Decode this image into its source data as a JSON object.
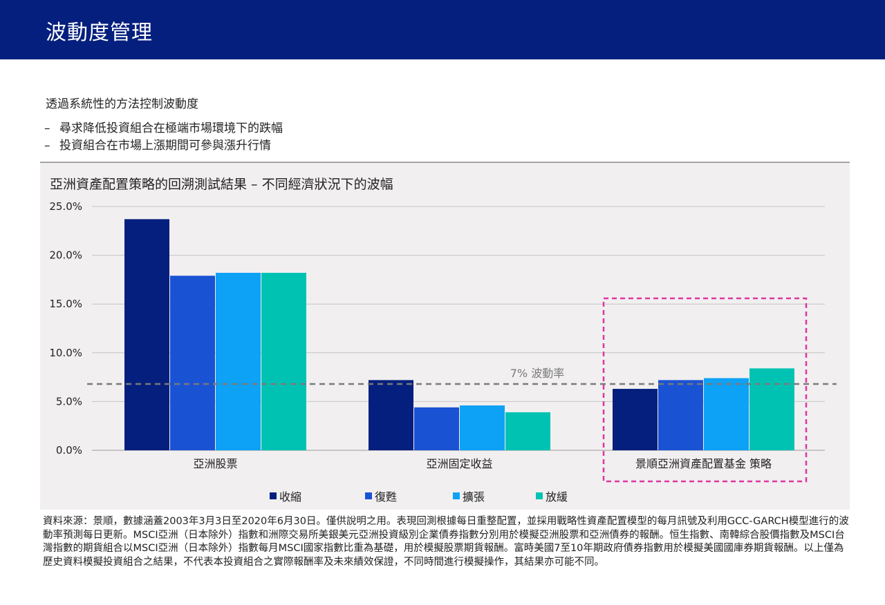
{
  "header": {
    "title": "波動度管理"
  },
  "intro": {
    "heading": "透過系統性的方法控制波動度",
    "bullets": [
      {
        "dash": "–",
        "text": "尋求降低投資組合在極端市場環境下的跌幅"
      },
      {
        "dash": "–",
        "text": "投資組合在市場上漲期間可參與漲升行情"
      }
    ]
  },
  "chart_data": {
    "type": "bar",
    "title": "亞洲資產配置策略的回溯測試結果 – 不同經濟狀況下的波幅",
    "categories": [
      "亞洲股票",
      "亞洲固定收益",
      "景順亞洲資產配置基金 策略"
    ],
    "series": [
      {
        "name": "收縮",
        "color": "#041f7d",
        "values": [
          23.7,
          7.2,
          6.3
        ]
      },
      {
        "name": "復甦",
        "color": "#1a52d4",
        "values": [
          17.9,
          4.4,
          7.2
        ]
      },
      {
        "name": "擴張",
        "color": "#0da2f5",
        "values": [
          18.2,
          4.6,
          7.4
        ]
      },
      {
        "name": "放緩",
        "color": "#00c2b3",
        "values": [
          18.2,
          3.9,
          8.4
        ]
      }
    ],
    "ylim": [
      0,
      25
    ],
    "yticks": [
      "0.0%",
      "5.0%",
      "10.0%",
      "15.0%",
      "20.0%",
      "25.0%"
    ],
    "reference_line": {
      "value": 6.8,
      "label": "7% 波動率",
      "color": "#7a7a7a"
    },
    "highlight": {
      "category_index": 2,
      "color": "#e0359e"
    },
    "grid": true,
    "legend_position": "bottom"
  },
  "source_note": "資料來源：景順，數據涵蓋2003年3月3日至2020年6月30日。僅供說明之用。表現回測根據每日重整配置，並採用戰略性資產配置模型的每月訊號及利用GCC-GARCH模型進行的波動率預測每日更新。MSCI亞洲（日本除外）指數和洲際交易所美銀美元亞洲投資級別企業債券指數分別用於模擬亞洲股票和亞洲債券的報酬。恒生指數、南韓綜合股價指數及MSCI台灣指數的期貨組合以MSCI亞洲（日本除外）指數每月MSCI國家指數比重為基礎，用於模擬股票期貨報酬。富時美國7至10年期政府債券指數用於模擬美國國庫券期貨報酬。以上僅為歷史資料模擬投資組合之結果，不代表本投資組合之實際報酬率及未來績效保證，不同時間進行模擬操作，其結果亦可能不同。"
}
